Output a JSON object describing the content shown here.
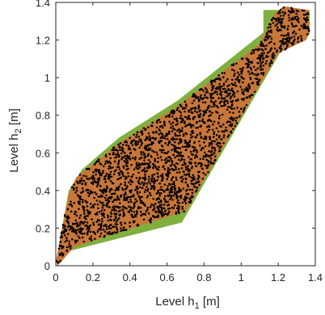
{
  "chart_data": {
    "type": "scatter",
    "xlabel": "Level h",
    "xlabel_sub": "1",
    "xlabel_unit": " [m]",
    "ylabel": "Level h",
    "ylabel_sub": "2",
    "ylabel_unit": " [m]",
    "xlim": [
      0,
      1.4
    ],
    "ylim": [
      0,
      1.4
    ],
    "xticks": [
      0,
      0.2,
      0.4,
      0.6,
      0.8,
      1,
      1.2,
      1.4
    ],
    "yticks": [
      0,
      0.2,
      0.4,
      0.6,
      0.8,
      1,
      1.2,
      1.4
    ],
    "xtick_labels": [
      "0",
      "0.2",
      "0.4",
      "0.6",
      "0.8",
      "1",
      "1.2",
      "1.4"
    ],
    "ytick_labels": [
      "0",
      "0.2",
      "0.4",
      "0.6",
      "0.8",
      "1",
      "1.2",
      "1.4"
    ],
    "grid": false,
    "colors": {
      "outer_region": "#7fb03f",
      "inner_region": "#c8763a",
      "points": "#000000"
    },
    "outer_region": [
      [
        0.0,
        0.02
      ],
      [
        0.07,
        0.4
      ],
      [
        0.14,
        0.51
      ],
      [
        0.34,
        0.68
      ],
      [
        0.66,
        0.88
      ],
      [
        1.12,
        1.24
      ],
      [
        1.12,
        1.36
      ],
      [
        1.37,
        1.36
      ],
      [
        1.37,
        1.23
      ],
      [
        1.32,
        1.2
      ],
      [
        1.22,
        1.15
      ],
      [
        0.68,
        0.23
      ],
      [
        0.08,
        0.08
      ],
      [
        0.01,
        0.0
      ]
    ],
    "inner_region": [
      [
        0.0,
        0.02
      ],
      [
        0.07,
        0.38
      ],
      [
        0.11,
        0.47
      ],
      [
        0.34,
        0.65
      ],
      [
        0.66,
        0.85
      ],
      [
        1.1,
        1.18
      ],
      [
        1.18,
        1.34
      ],
      [
        1.23,
        1.38
      ],
      [
        1.36,
        1.36
      ],
      [
        1.37,
        1.24
      ],
      [
        1.35,
        1.2
      ],
      [
        1.2,
        1.13
      ],
      [
        0.7,
        0.29
      ],
      [
        0.1,
        0.1
      ],
      [
        0.01,
        0.0
      ]
    ],
    "points_estimated_count": 3000
  }
}
